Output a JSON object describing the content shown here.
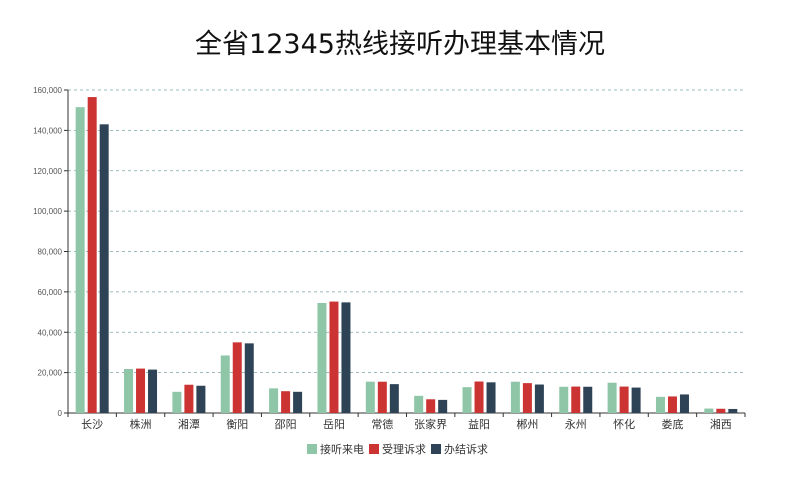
{
  "chart_data": {
    "type": "bar",
    "title": "全省12345热线接听办理基本情况",
    "categories": [
      "长沙",
      "株洲",
      "湘潭",
      "衡阳",
      "邵阳",
      "岳阳",
      "常德",
      "张家界",
      "益阳",
      "郴州",
      "永州",
      "怀化",
      "娄底",
      "湘西"
    ],
    "series": [
      {
        "name": "接听来电",
        "color": "#8fc6a7",
        "values": [
          151500,
          21800,
          10500,
          28500,
          12200,
          54500,
          15500,
          8500,
          12800,
          15500,
          13000,
          15000,
          8000,
          2200
        ]
      },
      {
        "name": "受理诉求",
        "color": "#cc3333",
        "values": [
          156500,
          22000,
          14000,
          35000,
          10800,
          55200,
          15500,
          6800,
          15600,
          14800,
          13100,
          13100,
          8200,
          2100
        ]
      },
      {
        "name": "办结诉求",
        "color": "#2e4356",
        "values": [
          143000,
          21500,
          13500,
          34500,
          10500,
          54800,
          14300,
          6500,
          15200,
          14100,
          13000,
          12600,
          9200,
          2000
        ]
      }
    ],
    "yticks": [
      "0",
      "20,000",
      "40,000",
      "60,000",
      "80,000",
      "100,000",
      "120,000",
      "140,000",
      "160,000"
    ],
    "ylim": [
      0,
      160000
    ],
    "grid": true,
    "legend": "bottom-center"
  }
}
